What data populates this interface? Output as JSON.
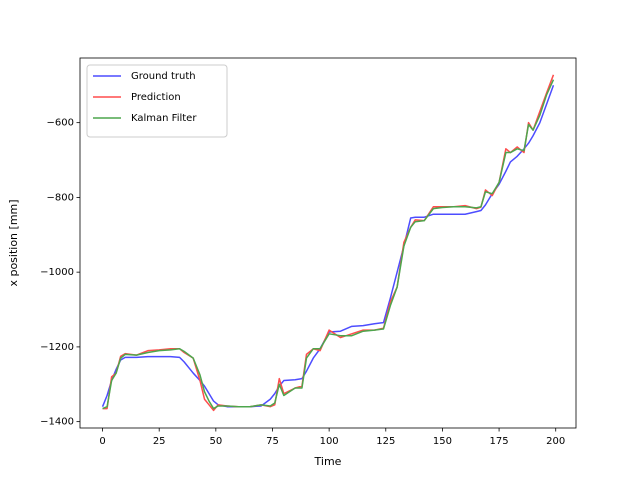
{
  "chart_data": {
    "type": "line",
    "x_label": "Time",
    "y_label": "x position [mm]",
    "x": [
      0,
      2,
      4,
      6,
      8,
      10,
      15,
      20,
      25,
      30,
      34,
      36,
      40,
      43,
      45,
      47,
      49,
      51,
      55,
      60,
      65,
      70,
      74,
      76,
      78,
      80,
      85,
      88,
      90,
      93,
      96,
      100,
      105,
      110,
      115,
      120,
      124,
      127,
      130,
      133,
      136,
      138,
      142,
      146,
      150,
      155,
      160,
      165,
      167,
      169,
      172,
      175,
      178,
      180,
      183,
      186,
      188,
      190,
      193,
      196,
      199
    ],
    "series": [
      {
        "name": "Ground truth",
        "color": "#4d4dff",
        "values": [
          -1360,
          -1330,
          -1290,
          -1260,
          -1235,
          -1228,
          -1228,
          -1226,
          -1226,
          -1226,
          -1228,
          -1240,
          -1270,
          -1290,
          -1305,
          -1325,
          -1345,
          -1355,
          -1360,
          -1360,
          -1360,
          -1358,
          -1340,
          -1325,
          -1305,
          -1290,
          -1288,
          -1285,
          -1265,
          -1230,
          -1205,
          -1160,
          -1158,
          -1145,
          -1143,
          -1138,
          -1135,
          -1070,
          -1000,
          -930,
          -855,
          -853,
          -853,
          -845,
          -845,
          -845,
          -845,
          -838,
          -835,
          -820,
          -790,
          -765,
          -730,
          -705,
          -690,
          -670,
          -655,
          -635,
          -600,
          -550,
          -500
        ]
      },
      {
        "name": "Prediction",
        "color": "#ff4d4d",
        "values": [
          -1365,
          -1365,
          -1280,
          -1270,
          -1225,
          -1218,
          -1222,
          -1210,
          -1208,
          -1205,
          -1205,
          -1215,
          -1230,
          -1290,
          -1340,
          -1355,
          -1370,
          -1355,
          -1358,
          -1360,
          -1360,
          -1355,
          -1360,
          -1355,
          -1285,
          -1325,
          -1310,
          -1305,
          -1220,
          -1205,
          -1210,
          -1155,
          -1175,
          -1165,
          -1155,
          -1155,
          -1150,
          -1080,
          -1040,
          -920,
          -880,
          -860,
          -862,
          -825,
          -825,
          -825,
          -822,
          -830,
          -826,
          -780,
          -795,
          -760,
          -670,
          -680,
          -665,
          -680,
          -600,
          -620,
          -570,
          -520,
          -472
        ]
      },
      {
        "name": "Kalman Filter",
        "color": "#4da64d",
        "values": [
          -1365,
          -1360,
          -1290,
          -1270,
          -1230,
          -1220,
          -1222,
          -1215,
          -1210,
          -1208,
          -1205,
          -1212,
          -1230,
          -1275,
          -1320,
          -1345,
          -1365,
          -1358,
          -1358,
          -1360,
          -1360,
          -1355,
          -1358,
          -1350,
          -1300,
          -1330,
          -1310,
          -1310,
          -1230,
          -1205,
          -1205,
          -1165,
          -1170,
          -1170,
          -1158,
          -1155,
          -1152,
          -1090,
          -1040,
          -930,
          -880,
          -865,
          -862,
          -830,
          -827,
          -825,
          -825,
          -828,
          -825,
          -785,
          -790,
          -760,
          -680,
          -680,
          -670,
          -675,
          -605,
          -620,
          -580,
          -525,
          -485
        ]
      }
    ],
    "xlim": [
      -9.95,
      208.95
    ],
    "xticks": [
      0,
      25,
      50,
      75,
      100,
      125,
      150,
      175,
      200
    ],
    "ylim": [
      -1417,
      -427
    ],
    "yticks": [
      {
        "value": -1400,
        "label": "−1400"
      },
      {
        "value": -1200,
        "label": "−1200"
      },
      {
        "value": -1000,
        "label": "−1000"
      },
      {
        "value": -800,
        "label": "−800"
      },
      {
        "value": -600,
        "label": "−600"
      }
    ],
    "legend": "upper left",
    "grid": false
  }
}
